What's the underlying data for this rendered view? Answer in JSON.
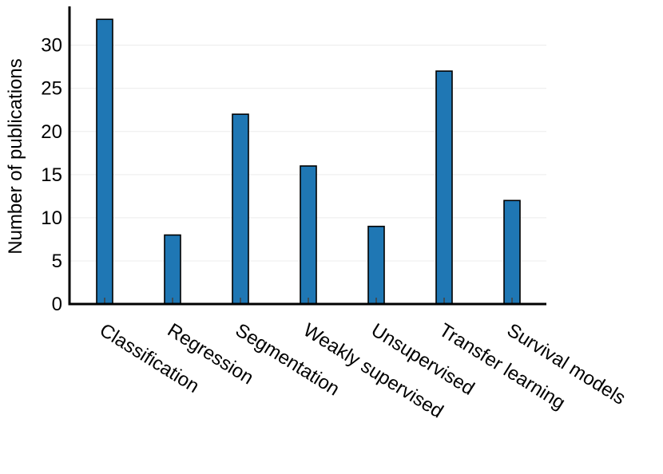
{
  "chart_data": {
    "type": "bar",
    "title": "",
    "xlabel": "",
    "ylabel": "Number of publications",
    "categories": [
      "Classification",
      "Regression",
      "Segmentation",
      "Weakly supervised",
      "Unsupervised",
      "Transfer learning",
      "Survival models"
    ],
    "values": [
      33,
      8,
      22,
      16,
      9,
      27,
      12
    ],
    "ylim": [
      0,
      34.5
    ],
    "yticks": [
      0,
      5,
      10,
      15,
      20,
      25,
      30
    ],
    "grid": true,
    "legend": "none",
    "bar_color": "#1f77b4"
  }
}
